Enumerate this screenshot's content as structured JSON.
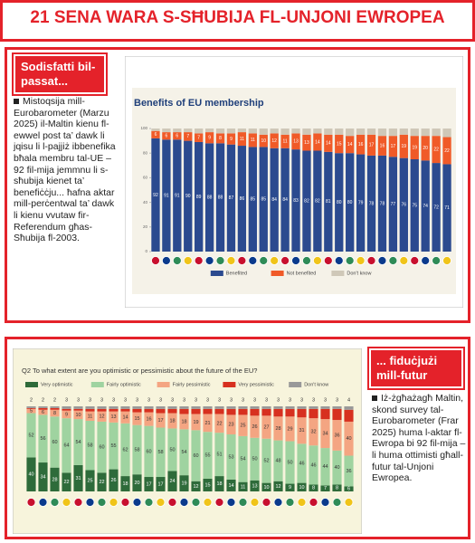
{
  "header": {
    "title": "21 SENA WARA S-SĦUBIJA FL-UNJONI EWROPEA"
  },
  "sections": [
    {
      "heading": "Sodisfatti bil-passat...",
      "text": "Mistoqsija mill-Eurobarometer (Marzu 2025) il-Maltin kienu fl-ewwel post ta’ dawk li jqisu li l-pajjiż ibbenefika bħala membru tal-UE – 92 fil-mija jemmnu li s-sħubija kienet ta’ benefiċċju... ħafna aktar mill-perċentwal ta’ dawk li kienu vvutaw fir-Referendum għas-Sħubija fl-2003."
    },
    {
      "heading": "... fiduċjużi mill-futur",
      "text": "Iż-żgħażagħ Maltin, skond survey tal-Eurobarometer (Frar 2025) huma l-aktar fl-Ewropa bi 92 fil-mija – li huma ottimisti għall-futur tal-Unjoni Ewropea."
    }
  ],
  "chart_data": [
    {
      "type": "stacked_bar",
      "title": "Benefits of EU membership",
      "ylim": [
        0,
        100
      ],
      "yticks": [
        0,
        20,
        40,
        60,
        80,
        100
      ],
      "series": [
        {
          "name": "Benefited",
          "color": "#2b4a8f",
          "values": [
            92,
            91,
            91,
            90,
            89,
            88,
            88,
            87,
            86,
            85,
            85,
            84,
            84,
            83,
            82,
            82,
            81,
            80,
            80,
            79,
            78,
            78,
            77,
            76,
            75,
            74,
            72,
            71
          ]
        },
        {
          "name": "Not benefited",
          "color": "#f05a28",
          "values": [
            6,
            6,
            6,
            7,
            7,
            9,
            8,
            9,
            11,
            11,
            10,
            12,
            11,
            13,
            13,
            14,
            14,
            15,
            14,
            16,
            17,
            16,
            17,
            19,
            19,
            20,
            22,
            22
          ]
        },
        {
          "name": "Don't know",
          "color": "#cfc8b8",
          "values": [
            2,
            3,
            3,
            3,
            4,
            3,
            4,
            4,
            3,
            4,
            5,
            4,
            5,
            4,
            5,
            4,
            5,
            5,
            6,
            5,
            5,
            6,
            6,
            5,
            6,
            6,
            6,
            7
          ]
        }
      ]
    },
    {
      "type": "stacked_bar",
      "title": "Q2 To what extent are you optimistic or pessimistic about the future of the EU?",
      "ylim": [
        0,
        100
      ],
      "series": [
        {
          "name": "Very optimistic",
          "color": "#2e6b3a",
          "values": [
            40,
            34,
            28,
            22,
            31,
            25,
            22,
            26,
            18,
            20,
            17,
            17,
            24,
            19,
            12,
            15,
            18,
            14,
            11,
            13,
            10,
            12,
            9,
            10,
            8,
            7,
            8,
            6
          ]
        },
        {
          "name": "Fairly optimistic",
          "color": "#9fd3a0",
          "values": [
            52,
            56,
            60,
            64,
            54,
            58,
            60,
            55,
            62,
            58,
            60,
            58,
            50,
            54,
            60,
            55,
            51,
            53,
            54,
            50,
            52,
            48,
            50,
            46,
            46,
            44,
            40,
            36
          ]
        },
        {
          "name": "Fairly pessimistic",
          "color": "#f4a582",
          "values": [
            5,
            6,
            8,
            9,
            10,
            11,
            12,
            13,
            14,
            15,
            16,
            17,
            18,
            18,
            19,
            21,
            22,
            23,
            25,
            26,
            27,
            28,
            29,
            31,
            32,
            34,
            36,
            40
          ]
        },
        {
          "name": "Very pessimistic",
          "color": "#d7301f",
          "values": [
            1,
            2,
            2,
            2,
            2,
            3,
            3,
            3,
            3,
            4,
            4,
            5,
            5,
            6,
            6,
            6,
            6,
            7,
            7,
            8,
            8,
            9,
            9,
            10,
            11,
            12,
            13,
            14
          ]
        },
        {
          "name": "Don't know",
          "color": "#999999",
          "values": [
            2,
            2,
            2,
            3,
            3,
            3,
            3,
            3,
            3,
            3,
            3,
            3,
            3,
            3,
            3,
            3,
            3,
            3,
            3,
            3,
            3,
            3,
            3,
            3,
            3,
            3,
            3,
            4
          ]
        }
      ]
    }
  ]
}
